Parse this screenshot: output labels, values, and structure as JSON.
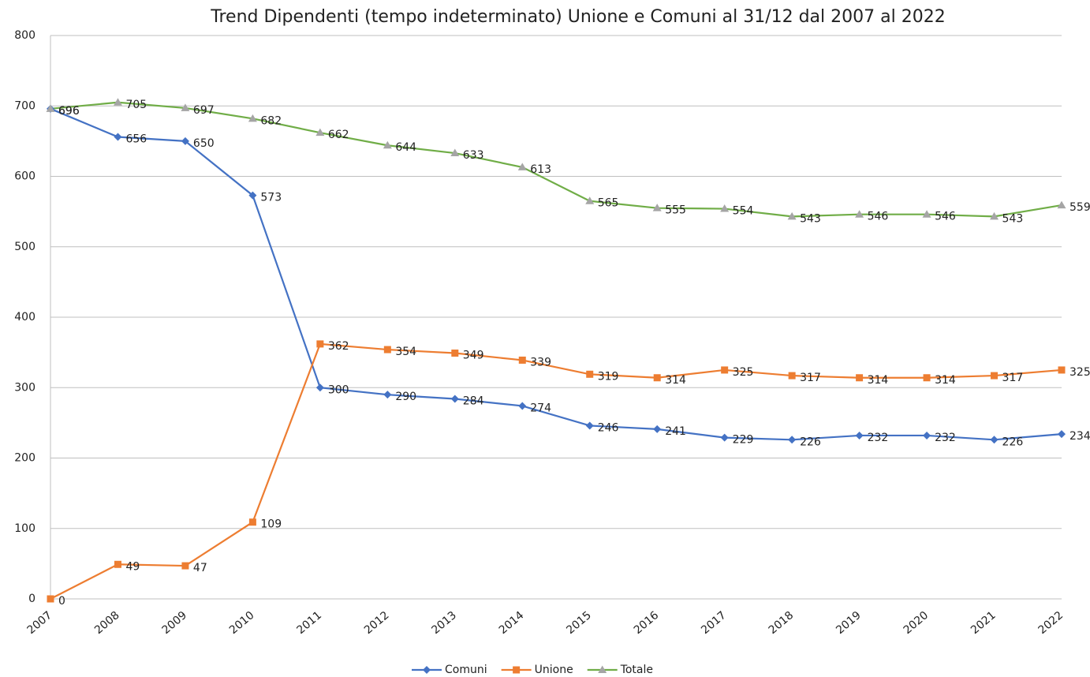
{
  "chart_data": {
    "type": "line",
    "title": "Trend Dipendenti (tempo indeterminato) Unione e Comuni al 31/12 dal 2007 al 2022",
    "x": [
      2007,
      2008,
      2009,
      2010,
      2011,
      2012,
      2013,
      2014,
      2015,
      2016,
      2017,
      2018,
      2019,
      2020,
      2021,
      2022
    ],
    "xlim": [
      2007,
      2022
    ],
    "ylim": [
      0,
      800
    ],
    "yticks": [
      0,
      100,
      200,
      300,
      400,
      500,
      600,
      700,
      800
    ],
    "grid": true,
    "legend": "bottom",
    "series": [
      {
        "name": "Comuni",
        "color": "#4472c4",
        "marker": "diamond",
        "marker_color": "#4472c4",
        "values": [
          696,
          656,
          650,
          573,
          300,
          290,
          284,
          274,
          246,
          241,
          229,
          226,
          232,
          232,
          226,
          234
        ]
      },
      {
        "name": "Unione",
        "color": "#ed7d31",
        "marker": "square",
        "marker_color": "#ed7d31",
        "values": [
          0,
          49,
          47,
          109,
          362,
          354,
          349,
          339,
          319,
          314,
          325,
          317,
          314,
          314,
          317,
          325
        ]
      },
      {
        "name": "Totale",
        "color": "#70ad47",
        "marker": "triangle",
        "marker_color": "#a5a5a5",
        "values": [
          696,
          705,
          697,
          682,
          662,
          644,
          633,
          613,
          565,
          555,
          554,
          543,
          546,
          546,
          543,
          559
        ]
      }
    ]
  }
}
